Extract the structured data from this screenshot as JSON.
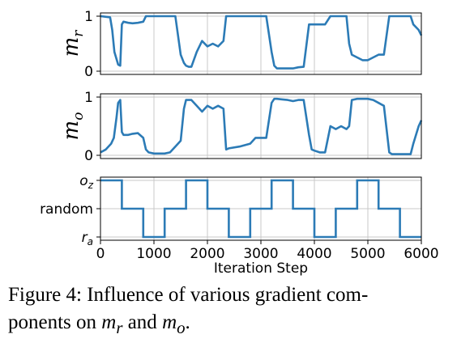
{
  "chart_data": [
    {
      "type": "line",
      "ylabel": "m_r",
      "xlim": [
        0,
        6000
      ],
      "ylim": [
        0,
        1
      ],
      "yticks": [
        0,
        1
      ],
      "grid": true,
      "color": "#2c7bb6",
      "x": [
        0,
        180,
        220,
        260,
        330,
        370,
        400,
        430,
        520,
        600,
        700,
        800,
        850,
        900,
        1000,
        1200,
        1300,
        1400,
        1500,
        1560,
        1600,
        1650,
        1700,
        1800,
        1900,
        1950,
        2000,
        2100,
        2200,
        2300,
        2350,
        2400,
        2600,
        2800,
        2850,
        2900,
        3100,
        3200,
        3250,
        3300,
        3400,
        3500,
        3600,
        3700,
        3800,
        3900,
        3950,
        4000,
        4100,
        4200,
        4300,
        4400,
        4500,
        4600,
        4650,
        4700,
        4800,
        4900,
        5000,
        5100,
        5200,
        5300,
        5400,
        5450,
        5500,
        5700,
        5800,
        5850,
        5950,
        6000
      ],
      "y": [
        1.0,
        0.98,
        0.75,
        0.35,
        0.12,
        0.1,
        0.85,
        0.9,
        0.88,
        0.87,
        0.88,
        0.9,
        1.0,
        1.0,
        1.0,
        1.0,
        1.0,
        1.0,
        0.3,
        0.15,
        0.1,
        0.08,
        0.08,
        0.35,
        0.55,
        0.5,
        0.45,
        0.5,
        0.45,
        0.55,
        1.0,
        1.0,
        1.0,
        1.0,
        1.0,
        1.0,
        1.0,
        0.35,
        0.1,
        0.05,
        0.05,
        0.05,
        0.05,
        0.07,
        0.08,
        0.85,
        0.85,
        0.85,
        0.85,
        0.85,
        1.0,
        1.0,
        1.0,
        1.0,
        0.5,
        0.3,
        0.25,
        0.2,
        0.2,
        0.25,
        0.3,
        0.3,
        1.0,
        1.0,
        1.0,
        1.0,
        1.0,
        0.85,
        0.75,
        0.65
      ]
    },
    {
      "type": "line",
      "ylabel": "m_o",
      "xlim": [
        0,
        6000
      ],
      "ylim": [
        0,
        1
      ],
      "yticks": [
        0,
        1
      ],
      "grid": true,
      "color": "#2c7bb6",
      "x": [
        0,
        100,
        200,
        250,
        300,
        330,
        370,
        400,
        430,
        520,
        600,
        700,
        800,
        850,
        900,
        1000,
        1200,
        1300,
        1400,
        1500,
        1560,
        1600,
        1650,
        1700,
        1800,
        1900,
        1950,
        2000,
        2100,
        2200,
        2300,
        2350,
        2400,
        2600,
        2800,
        2850,
        2900,
        3100,
        3200,
        3250,
        3300,
        3400,
        3500,
        3600,
        3700,
        3800,
        3900,
        3950,
        4000,
        4100,
        4200,
        4300,
        4400,
        4500,
        4600,
        4650,
        4700,
        4800,
        4900,
        5000,
        5100,
        5200,
        5300,
        5400,
        5450,
        5500,
        5700,
        5800,
        5850,
        5950,
        6000
      ],
      "y": [
        0.05,
        0.1,
        0.2,
        0.3,
        0.65,
        0.9,
        0.95,
        0.4,
        0.35,
        0.35,
        0.37,
        0.38,
        0.3,
        0.1,
        0.05,
        0.03,
        0.03,
        0.05,
        0.15,
        0.25,
        0.8,
        0.95,
        0.95,
        0.95,
        0.85,
        0.75,
        0.8,
        0.85,
        0.8,
        0.85,
        0.8,
        0.1,
        0.12,
        0.15,
        0.2,
        0.25,
        0.3,
        0.3,
        0.9,
        0.97,
        0.97,
        0.96,
        0.95,
        0.93,
        0.95,
        0.95,
        0.35,
        0.1,
        0.08,
        0.05,
        0.05,
        0.5,
        0.45,
        0.5,
        0.45,
        0.5,
        0.95,
        0.97,
        0.97,
        0.97,
        0.95,
        0.9,
        0.85,
        0.05,
        0.02,
        0.02,
        0.02,
        0.02,
        0.2,
        0.5,
        0.6
      ]
    },
    {
      "type": "line",
      "xlabel": "Iteration Step",
      "xlim": [
        0,
        6000
      ],
      "xticks": [
        0,
        1000,
        2000,
        3000,
        4000,
        5000,
        6000
      ],
      "ycategories": [
        "r_a",
        "random",
        "o_z"
      ],
      "grid": true,
      "color": "#2c7bb6",
      "x": [
        0,
        400,
        400,
        800,
        800,
        1200,
        1200,
        1600,
        1600,
        2000,
        2000,
        2400,
        2400,
        2800,
        2800,
        3200,
        3200,
        3600,
        3600,
        4000,
        4000,
        4400,
        4400,
        4800,
        4800,
        5200,
        5200,
        5600,
        5600,
        6000
      ],
      "y": [
        "o_z",
        "o_z",
        "random",
        "random",
        "r_a",
        "r_a",
        "random",
        "random",
        "o_z",
        "o_z",
        "random",
        "random",
        "r_a",
        "r_a",
        "random",
        "random",
        "o_z",
        "o_z",
        "random",
        "random",
        "r_a",
        "r_a",
        "random",
        "random",
        "o_z",
        "o_z",
        "random",
        "random",
        "r_a",
        "r_a"
      ]
    }
  ],
  "caption": {
    "lead": "Figure 4: Influence of various gradient com-",
    "line2_start": "ponents on ",
    "sym1": "m",
    "sub1": "r",
    "mid": " and ",
    "sym2": "m",
    "sub2": "o",
    "end": "."
  }
}
